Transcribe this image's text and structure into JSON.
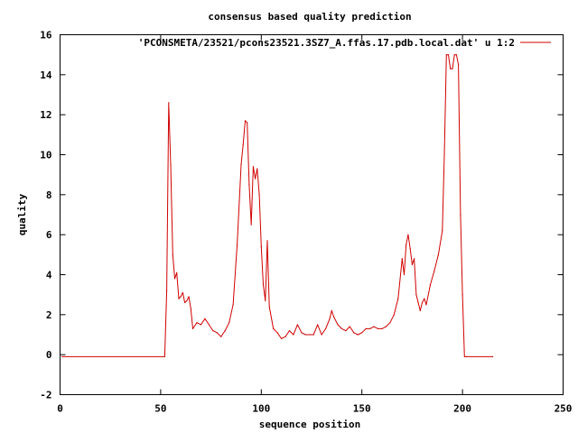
{
  "chart_data": {
    "type": "line",
    "title": "consensus based quality prediction",
    "xlabel": "sequence position",
    "ylabel": "quality",
    "xlim": [
      0,
      250
    ],
    "ylim": [
      -2,
      16
    ],
    "xticks": [
      0,
      50,
      100,
      150,
      200,
      250
    ],
    "yticks": [
      -2,
      0,
      2,
      4,
      6,
      8,
      10,
      12,
      14,
      16
    ],
    "grid": false,
    "legend_position": "top-right",
    "colors": {
      "series": "#d00000",
      "axes": "#000000",
      "background": "#ffffff"
    },
    "series": [
      {
        "name": "'PCONSMETA/23521/pcons23521.3SZ7_A.ffas.17.pdb.local.dat' u 1:2",
        "x": [
          1,
          52,
          53,
          54,
          55,
          56,
          57,
          58,
          59,
          60,
          61,
          62,
          63,
          64,
          65,
          66,
          68,
          70,
          72,
          74,
          76,
          78,
          80,
          82,
          84,
          86,
          88,
          90,
          91,
          92,
          93,
          94,
          95,
          96,
          97,
          98,
          99,
          100,
          101,
          102,
          103,
          104,
          106,
          108,
          110,
          112,
          114,
          116,
          118,
          120,
          122,
          124,
          126,
          128,
          130,
          132,
          134,
          135,
          136,
          138,
          140,
          142,
          144,
          146,
          148,
          150,
          152,
          154,
          156,
          158,
          160,
          162,
          164,
          166,
          168,
          170,
          171,
          172,
          173,
          174,
          175,
          176,
          177,
          178,
          179,
          180,
          181,
          182,
          184,
          186,
          188,
          190,
          191,
          192,
          193,
          194,
          195,
          196,
          197,
          198,
          199,
          200,
          201,
          202,
          215
        ],
        "y": [
          -0.1,
          -0.1,
          3.2,
          12.6,
          9.5,
          5.0,
          3.8,
          4.1,
          2.8,
          2.9,
          3.1,
          2.6,
          2.7,
          2.9,
          2.3,
          1.3,
          1.6,
          1.5,
          1.8,
          1.5,
          1.2,
          1.1,
          0.9,
          1.2,
          1.6,
          2.5,
          5.5,
          9.5,
          10.5,
          11.7,
          11.6,
          8.5,
          6.5,
          9.4,
          8.8,
          9.3,
          8.0,
          5.4,
          3.5,
          2.7,
          5.7,
          2.4,
          1.3,
          1.1,
          0.8,
          0.9,
          1.2,
          1.0,
          1.5,
          1.1,
          1.0,
          1.0,
          1.0,
          1.5,
          1.0,
          1.3,
          1.8,
          2.2,
          1.9,
          1.5,
          1.3,
          1.2,
          1.4,
          1.1,
          1.0,
          1.1,
          1.3,
          1.3,
          1.4,
          1.3,
          1.3,
          1.4,
          1.6,
          2.0,
          2.8,
          4.8,
          4.0,
          5.5,
          6.0,
          5.3,
          4.5,
          4.8,
          3.0,
          2.6,
          2.2,
          2.6,
          2.8,
          2.5,
          3.5,
          4.2,
          5.0,
          6.2,
          10.0,
          15.0,
          15.0,
          14.3,
          14.3,
          15.0,
          15.0,
          14.5,
          7.0,
          3.0,
          -0.1,
          -0.1,
          -0.1
        ]
      }
    ]
  }
}
